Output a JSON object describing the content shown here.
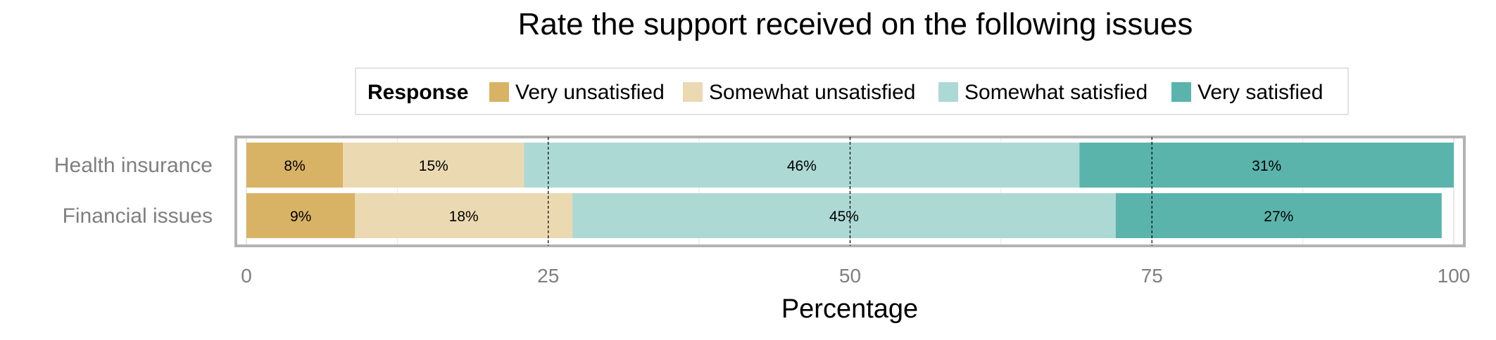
{
  "chart_data": {
    "type": "bar",
    "orientation": "horizontal",
    "stacked": true,
    "title": "Rate the support received on the following issues",
    "xlabel": "Percentage",
    "ylabel": "",
    "xlim": [
      0,
      100
    ],
    "xticks": [
      "0",
      "25",
      "50",
      "75",
      "100"
    ],
    "reference_lines": [
      25,
      50,
      75
    ],
    "grid": true,
    "legend": {
      "title": "Response",
      "position": "top"
    },
    "categories": [
      "Health insurance",
      "Financial issues"
    ],
    "series": [
      {
        "name": "Very unsatisfied",
        "color": "#d8b365",
        "values": [
          8,
          9
        ]
      },
      {
        "name": "Somewhat unsatisfied",
        "color": "#ebd9b2",
        "values": [
          15,
          18
        ]
      },
      {
        "name": "Somewhat satisfied",
        "color": "#add9d5",
        "values": [
          46,
          45
        ]
      },
      {
        "name": "Very satisfied",
        "color": "#5ab4ac",
        "values": [
          31,
          27
        ]
      }
    ],
    "data_labels": [
      [
        "8%",
        "15%",
        "46%",
        "31%"
      ],
      [
        "9%",
        "18%",
        "45%",
        "27%"
      ]
    ]
  }
}
